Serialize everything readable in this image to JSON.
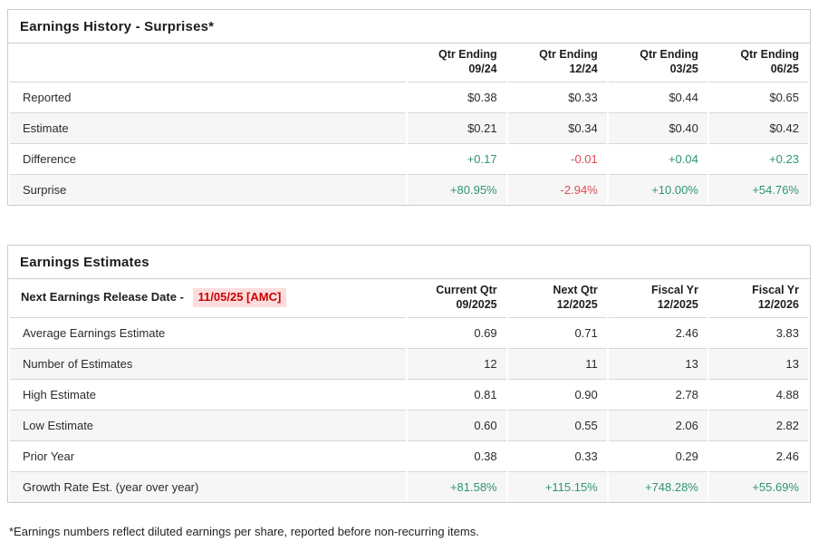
{
  "colors": {
    "positive": "#2f9475",
    "negative": "#dc4a56",
    "release_date_text": "#cc0000",
    "release_date_bg": "#fcdddd",
    "row_stripe": "#f6f6f6",
    "border": "#cbcbcb"
  },
  "history": {
    "title": "Earnings History - Surprises*",
    "columns": [
      {
        "label": "Qtr Ending",
        "period": "09/24"
      },
      {
        "label": "Qtr Ending",
        "period": "12/24"
      },
      {
        "label": "Qtr Ending",
        "period": "03/25"
      },
      {
        "label": "Qtr Ending",
        "period": "06/25"
      }
    ],
    "rows": [
      {
        "label": "Reported",
        "values": [
          "$0.38",
          "$0.33",
          "$0.44",
          "$0.65"
        ]
      },
      {
        "label": "Estimate",
        "values": [
          "$0.21",
          "$0.34",
          "$0.40",
          "$0.42"
        ]
      },
      {
        "label": "Difference",
        "values": [
          "+0.17",
          "-0.01",
          "+0.04",
          "+0.23"
        ],
        "tones": [
          "pos",
          "neg",
          "pos",
          "pos"
        ]
      },
      {
        "label": "Surprise",
        "values": [
          "+80.95%",
          "-2.94%",
          "+10.00%",
          "+54.76%"
        ],
        "tones": [
          "pos",
          "neg",
          "pos",
          "pos"
        ]
      }
    ]
  },
  "estimates": {
    "title": "Earnings Estimates",
    "release_label": "Next Earnings Release Date -",
    "release_date": "11/05/25 [AMC]",
    "columns": [
      {
        "label": "Current Qtr",
        "period": "09/2025"
      },
      {
        "label": "Next Qtr",
        "period": "12/2025"
      },
      {
        "label": "Fiscal Yr",
        "period": "12/2025"
      },
      {
        "label": "Fiscal Yr",
        "period": "12/2026"
      }
    ],
    "rows": [
      {
        "label": "Average Earnings Estimate",
        "values": [
          "0.69",
          "0.71",
          "2.46",
          "3.83"
        ]
      },
      {
        "label": "Number of Estimates",
        "values": [
          "12",
          "11",
          "13",
          "13"
        ]
      },
      {
        "label": "High Estimate",
        "values": [
          "0.81",
          "0.90",
          "2.78",
          "4.88"
        ]
      },
      {
        "label": "Low Estimate",
        "values": [
          "0.60",
          "0.55",
          "2.06",
          "2.82"
        ]
      },
      {
        "label": "Prior Year",
        "values": [
          "0.38",
          "0.33",
          "0.29",
          "2.46"
        ]
      },
      {
        "label": "Growth Rate Est. (year over year)",
        "values": [
          "+81.58%",
          "+115.15%",
          "+748.28%",
          "+55.69%"
        ],
        "tones": [
          "pos",
          "pos",
          "pos",
          "pos"
        ]
      }
    ]
  },
  "footnote": "*Earnings numbers reflect diluted earnings per share, reported before non-recurring items."
}
